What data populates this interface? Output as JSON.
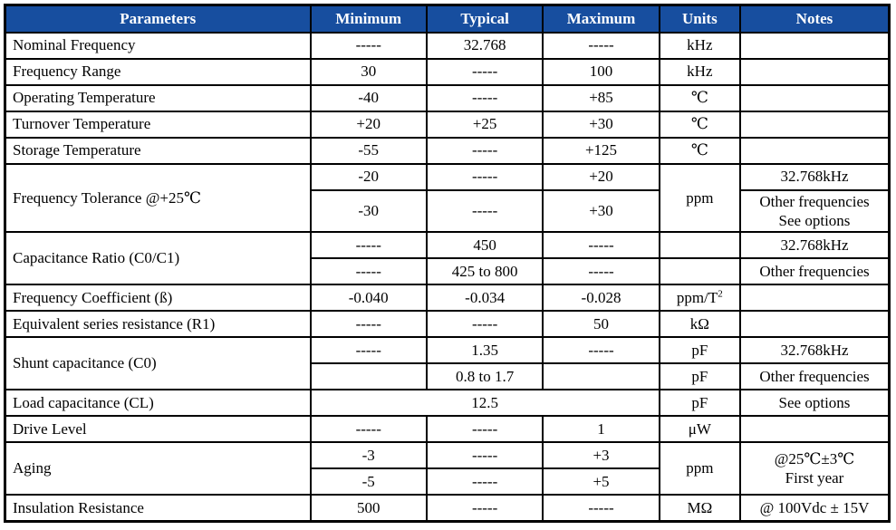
{
  "table": {
    "title": "Crystal specification table",
    "header_bg": "#174e9f",
    "header_text_color": "#ffffff",
    "border_color": "#000000",
    "columns": [
      "Parameters",
      "Minimum",
      "Typical",
      "Maximum",
      "Units",
      "Notes"
    ],
    "rows": [
      [
        {
          "t": "Nominal Frequency",
          "param": true
        },
        {
          "t": "-----"
        },
        {
          "t": "32.768"
        },
        {
          "t": "-----"
        },
        {
          "t": "kHz"
        },
        {
          "t": ""
        }
      ],
      [
        {
          "t": "Frequency Range",
          "param": true
        },
        {
          "t": "30"
        },
        {
          "t": "-----"
        },
        {
          "t": "100"
        },
        {
          "t": "kHz"
        },
        {
          "t": ""
        }
      ],
      [
        {
          "t": "Operating Temperature",
          "param": true
        },
        {
          "t": "-40"
        },
        {
          "t": "-----"
        },
        {
          "t": "+85"
        },
        {
          "t": "℃"
        },
        {
          "t": ""
        }
      ],
      [
        {
          "t": "Turnover Temperature",
          "param": true
        },
        {
          "t": "+20"
        },
        {
          "t": "+25"
        },
        {
          "t": "+30"
        },
        {
          "t": "℃"
        },
        {
          "t": ""
        }
      ],
      [
        {
          "t": "Storage Temperature",
          "param": true
        },
        {
          "t": "-55"
        },
        {
          "t": "-----"
        },
        {
          "t": "+125"
        },
        {
          "t": "℃"
        },
        {
          "t": ""
        }
      ],
      [
        {
          "t": "Frequency Tolerance @+25℃",
          "param": true,
          "rs": 2
        },
        {
          "t": "-20"
        },
        {
          "t": "-----"
        },
        {
          "t": "+20"
        },
        {
          "t": "ppm",
          "rs": 2
        },
        {
          "t": "32.768kHz"
        }
      ],
      [
        {
          "t": "-30"
        },
        {
          "t": "-----"
        },
        {
          "t": "+30"
        },
        {
          "lines": [
            "Other frequencies",
            "See options"
          ]
        }
      ],
      [
        {
          "t": "Capacitance Ratio (C0/C1)",
          "param": true,
          "rs": 2
        },
        {
          "t": "-----"
        },
        {
          "t": "450"
        },
        {
          "t": "-----"
        },
        {
          "t": ""
        },
        {
          "t": "32.768kHz"
        }
      ],
      [
        {
          "t": "-----"
        },
        {
          "t": "425 to 800"
        },
        {
          "t": "-----"
        },
        {
          "t": ""
        },
        {
          "t": "Other frequencies"
        }
      ],
      [
        {
          "t": "Frequency Coefficient (ß)",
          "param": true
        },
        {
          "t": "-0.040"
        },
        {
          "t": "-0.034"
        },
        {
          "t": "-0.028"
        },
        {
          "t": "ppm/T",
          "sup": "2"
        },
        {
          "t": ""
        }
      ],
      [
        {
          "t": "Equivalent series resistance (R1)",
          "param": true
        },
        {
          "t": "-----"
        },
        {
          "t": "-----"
        },
        {
          "t": "50"
        },
        {
          "t": "kΩ"
        },
        {
          "t": ""
        }
      ],
      [
        {
          "t": "Shunt capacitance (C0)",
          "param": true,
          "rs": 2
        },
        {
          "t": "-----"
        },
        {
          "t": "1.35"
        },
        {
          "t": "-----"
        },
        {
          "t": "pF"
        },
        {
          "t": "32.768kHz"
        }
      ],
      [
        {
          "t": ""
        },
        {
          "t": "0.8 to 1.7"
        },
        {
          "t": ""
        },
        {
          "t": "pF"
        },
        {
          "t": "Other frequencies"
        }
      ],
      [
        {
          "t": "Load capacitance (CL)",
          "param": true
        },
        {
          "t": "12.5",
          "cs": 3
        },
        {
          "t": "pF"
        },
        {
          "t": "See options"
        }
      ],
      [
        {
          "t": "Drive Level",
          "param": true
        },
        {
          "t": "-----"
        },
        {
          "t": "-----"
        },
        {
          "t": "1"
        },
        {
          "t": "μW"
        },
        {
          "t": ""
        }
      ],
      [
        {
          "t": "Aging",
          "param": true,
          "rs": 2
        },
        {
          "t": "-3"
        },
        {
          "t": "-----"
        },
        {
          "t": "+3"
        },
        {
          "t": "ppm",
          "rs": 2
        },
        {
          "lines": [
            "@25℃±3℃",
            "First year"
          ],
          "rs": 2
        }
      ],
      [
        {
          "t": "-5"
        },
        {
          "t": "-----"
        },
        {
          "t": "+5"
        }
      ],
      [
        {
          "t": "Insulation Resistance",
          "param": true
        },
        {
          "t": "500"
        },
        {
          "t": "-----"
        },
        {
          "t": "-----"
        },
        {
          "t": "MΩ"
        },
        {
          "t": "@ 100Vdc ± 15V"
        }
      ]
    ]
  }
}
